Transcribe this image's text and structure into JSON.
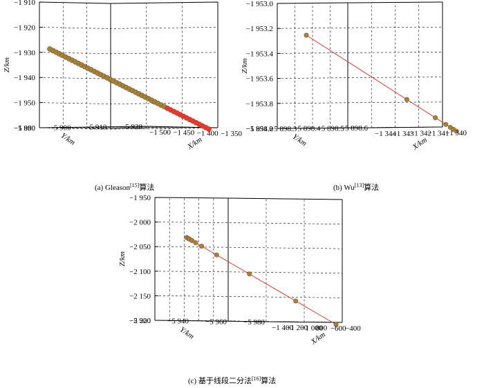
{
  "chart_data": [
    {
      "type": "scatter",
      "panel": "a",
      "caption": {
        "prefix": "(a) Gleason",
        "ref": "[15]",
        "suffix": "算法"
      },
      "z_label": "Z/km",
      "y_label": "Y/km",
      "x_label": "X/km",
      "z_ticks": [
        "−1 910",
        "−1 920",
        "−1 930",
        "−1 940",
        "−1 950",
        "−1 960"
      ],
      "y_ticks": [
        "−5 890",
        "−5 900",
        "−5 910",
        "−5 920"
      ],
      "x_ticks": [
        "−1 350",
        "−1 400",
        "−1 450",
        "−1 500"
      ],
      "series": [
        {
          "color": "#e03c31",
          "marker_color": "#8f8c3a",
          "points_along_line": [
            0.0,
            0.02,
            0.04,
            0.06,
            0.08,
            0.1,
            0.12,
            0.14,
            0.16,
            0.18,
            0.2,
            0.22,
            0.24,
            0.26,
            0.28,
            0.3,
            0.32,
            0.34,
            0.36,
            0.38,
            0.4,
            0.42,
            0.44,
            0.46,
            0.48,
            0.5,
            0.52,
            0.54,
            0.56,
            0.58,
            0.6,
            0.62,
            0.64,
            0.66,
            0.68,
            0.7,
            0.72,
            0.74,
            0.76,
            0.78,
            0.8,
            0.82,
            0.84,
            0.86,
            0.88,
            0.9,
            0.92,
            0.94,
            0.96,
            0.98,
            1.0
          ]
        }
      ]
    },
    {
      "type": "scatter",
      "panel": "b",
      "caption": {
        "prefix": "(b) Wu",
        "ref": "[13]",
        "suffix": "算法"
      },
      "z_label": "Z/km",
      "y_label": "Y/km",
      "x_label": "X/km",
      "z_ticks": [
        "−1 953.0",
        "−1 953.2",
        "−1 953.4",
        "−1 953.6",
        "−1 953.8",
        "−1 954.0"
      ],
      "y_ticks": [
        "−5 898.2",
        "−5 898.3",
        "−5 898.4",
        "−5 898.5",
        "−5 898.6"
      ],
      "x_ticks": [
        "−1 340",
        "−1 341",
        "−1 342",
        "−1 343",
        "−1 344"
      ],
      "series": [
        {
          "color": "#e03c31",
          "marker_color": "#8f8c3a",
          "points_along_line": [
            0.0,
            0.67,
            0.86,
            0.93,
            0.96,
            0.98,
            1.0
          ]
        }
      ]
    },
    {
      "type": "scatter",
      "panel": "c",
      "caption": {
        "prefix": "(c) 基于线段二分法",
        "ref": "[16]",
        "suffix": "算法"
      },
      "z_label": "Z/km",
      "y_label": "Y/km",
      "x_label": "X/km",
      "z_ticks": [
        "−1 950",
        "−2 000",
        "−2 050",
        "−2 100",
        "−2 150",
        "−2 200"
      ],
      "y_ticks": [
        "−5 920",
        "−5 940",
        "−5 960",
        "−5 980"
      ],
      "x_ticks": [
        "−400",
        "−600",
        "800",
        "−1 000",
        "−1 200",
        "−1 400"
      ],
      "series": [
        {
          "color": "#e03c31",
          "marker_color": "#8f8c3a",
          "points_along_line": [
            0.0,
            0.01,
            0.02,
            0.035,
            0.06,
            0.1,
            0.2,
            0.42,
            0.73,
            1.0
          ]
        }
      ]
    }
  ]
}
